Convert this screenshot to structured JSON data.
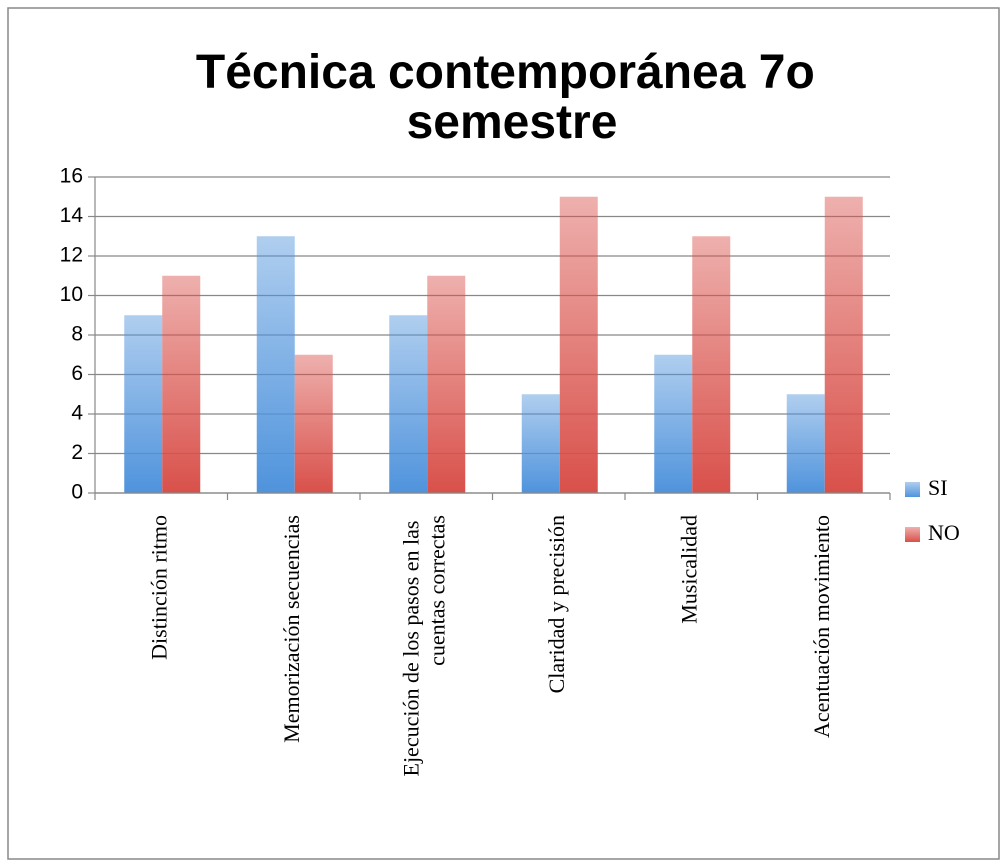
{
  "chart_data": {
    "type": "bar",
    "title": "Técnica contemporánea 7o semestre",
    "categories": [
      "Distinción ritmo",
      "Memorización secuencias",
      "Ejecución de los pasos en las cuentas correctas",
      "Claridad y precisión",
      "Musicalidad",
      "Acentuación movimiento"
    ],
    "series": [
      {
        "name": "SI",
        "color": "#4f93dc",
        "values": [
          9,
          13,
          9,
          5,
          7,
          5
        ]
      },
      {
        "name": "NO",
        "color": "#d9504a",
        "values": [
          11,
          7,
          11,
          15,
          13,
          15
        ]
      }
    ],
    "ylim": [
      0,
      16
    ],
    "yticks": [
      0,
      2,
      4,
      6,
      8,
      10,
      12,
      14,
      16
    ],
    "grid": true,
    "legend": "right"
  }
}
